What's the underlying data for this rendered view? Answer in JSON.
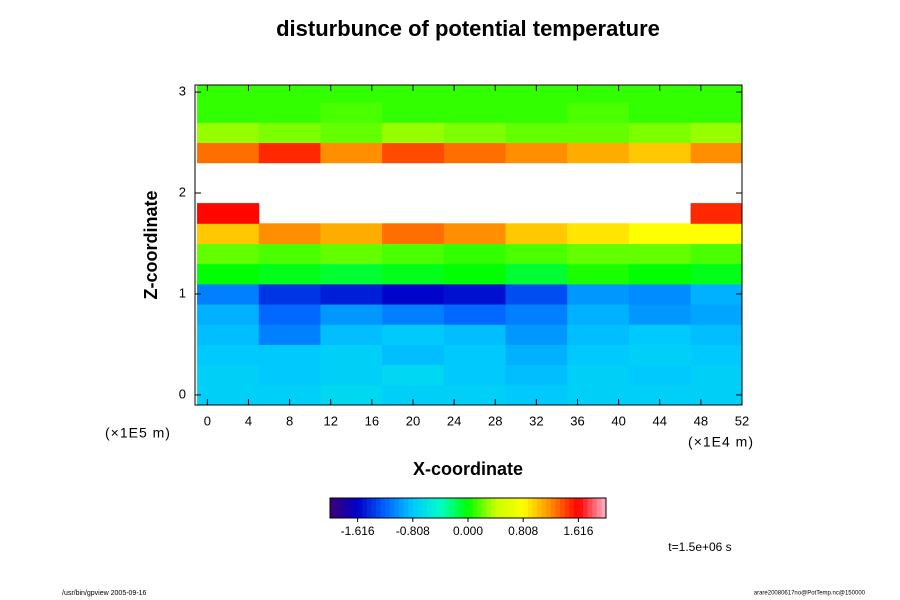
{
  "chart_data": {
    "type": "heatmap",
    "title": "disturbunce of potential temperature",
    "x_label": "X-coordinate",
    "y_label": "Z-coordinate",
    "x_unit": "(×1E4 m)",
    "y_unit": "(×1E5 m)",
    "time_label": "t=1.5e+06 s",
    "footer_left": "/usr/bin/gpview 2005-09-16",
    "footer_right": "arare20080617no@PotTemp.nc@150000",
    "x": [
      2,
      8,
      14,
      20,
      26,
      32,
      38,
      44,
      50
    ],
    "z": [
      0,
      0.2,
      0.4,
      0.6,
      0.8,
      1.0,
      1.2,
      1.4,
      1.6,
      1.8,
      2.0,
      2.2,
      2.4,
      2.6,
      2.8,
      3.0
    ],
    "values": [
      [
        -0.75,
        -0.75,
        -0.7,
        -0.75,
        -0.75,
        -0.8,
        -0.75,
        -0.75,
        -0.75
      ],
      [
        -0.75,
        -0.8,
        -0.75,
        -0.7,
        -0.8,
        -0.85,
        -0.75,
        -0.8,
        -0.75
      ],
      [
        -0.8,
        -0.8,
        -0.75,
        -0.85,
        -0.8,
        -0.9,
        -0.8,
        -0.75,
        -0.8
      ],
      [
        -0.85,
        -1.1,
        -0.85,
        -0.8,
        -0.85,
        -1.0,
        -0.85,
        -0.8,
        -0.85
      ],
      [
        -0.9,
        -1.2,
        -1.0,
        -1.1,
        -1.2,
        -1.1,
        -0.9,
        -1.0,
        -0.95
      ],
      [
        -1.1,
        -1.4,
        -1.5,
        -1.6,
        -1.55,
        -1.3,
        -1.0,
        -1.05,
        -0.9
      ],
      [
        0.0,
        -0.05,
        -0.1,
        -0.05,
        0.0,
        -0.1,
        0.05,
        0.0,
        -0.05
      ],
      [
        0.2,
        0.15,
        0.2,
        0.15,
        0.1,
        0.15,
        0.2,
        0.2,
        0.15
      ],
      [
        1.0,
        1.2,
        1.1,
        1.3,
        1.2,
        1.0,
        0.9,
        0.8,
        0.8
      ],
      [
        1.6,
        null,
        null,
        null,
        null,
        null,
        null,
        null,
        1.5
      ],
      [
        null,
        null,
        null,
        null,
        null,
        null,
        null,
        null,
        null
      ],
      [
        null,
        null,
        null,
        null,
        null,
        null,
        null,
        null,
        null
      ],
      [
        1.3,
        1.5,
        1.2,
        1.4,
        1.3,
        1.2,
        1.1,
        1.0,
        1.2
      ],
      [
        0.3,
        0.25,
        0.2,
        0.3,
        0.25,
        0.2,
        0.2,
        0.25,
        0.3
      ],
      [
        0.1,
        0.1,
        0.15,
        0.1,
        0.1,
        0.1,
        0.15,
        0.1,
        0.1
      ],
      [
        0.1,
        0.1,
        0.1,
        0.1,
        0.1,
        0.1,
        0.1,
        0.1,
        0.1
      ]
    ],
    "xlim": [
      -1.2,
      52
    ],
    "ylim": [
      -0.1,
      3.07
    ],
    "xticks": [
      0,
      4,
      8,
      12,
      16,
      20,
      24,
      28,
      32,
      36,
      40,
      44,
      48,
      52
    ],
    "yticks": [
      0,
      1,
      2,
      3
    ],
    "clim": [
      -2.02,
      2.02
    ],
    "colorbar_ticks": [
      {
        "value": -1.616,
        "label": "-1.616"
      },
      {
        "value": -0.808,
        "label": "-0.808"
      },
      {
        "value": 0,
        "label": "0.000"
      },
      {
        "value": 0.808,
        "label": "0.808"
      },
      {
        "value": 1.616,
        "label": "1.616"
      }
    ],
    "colormap": [
      "#3c0078",
      "#0000c8",
      "#0064ff",
      "#00c8ff",
      "#00ffc8",
      "#00ff00",
      "#c8ff00",
      "#ffff00",
      "#ff8c00",
      "#ff0000",
      "#ffb4c8"
    ],
    "missing_color": "#ffffff"
  }
}
